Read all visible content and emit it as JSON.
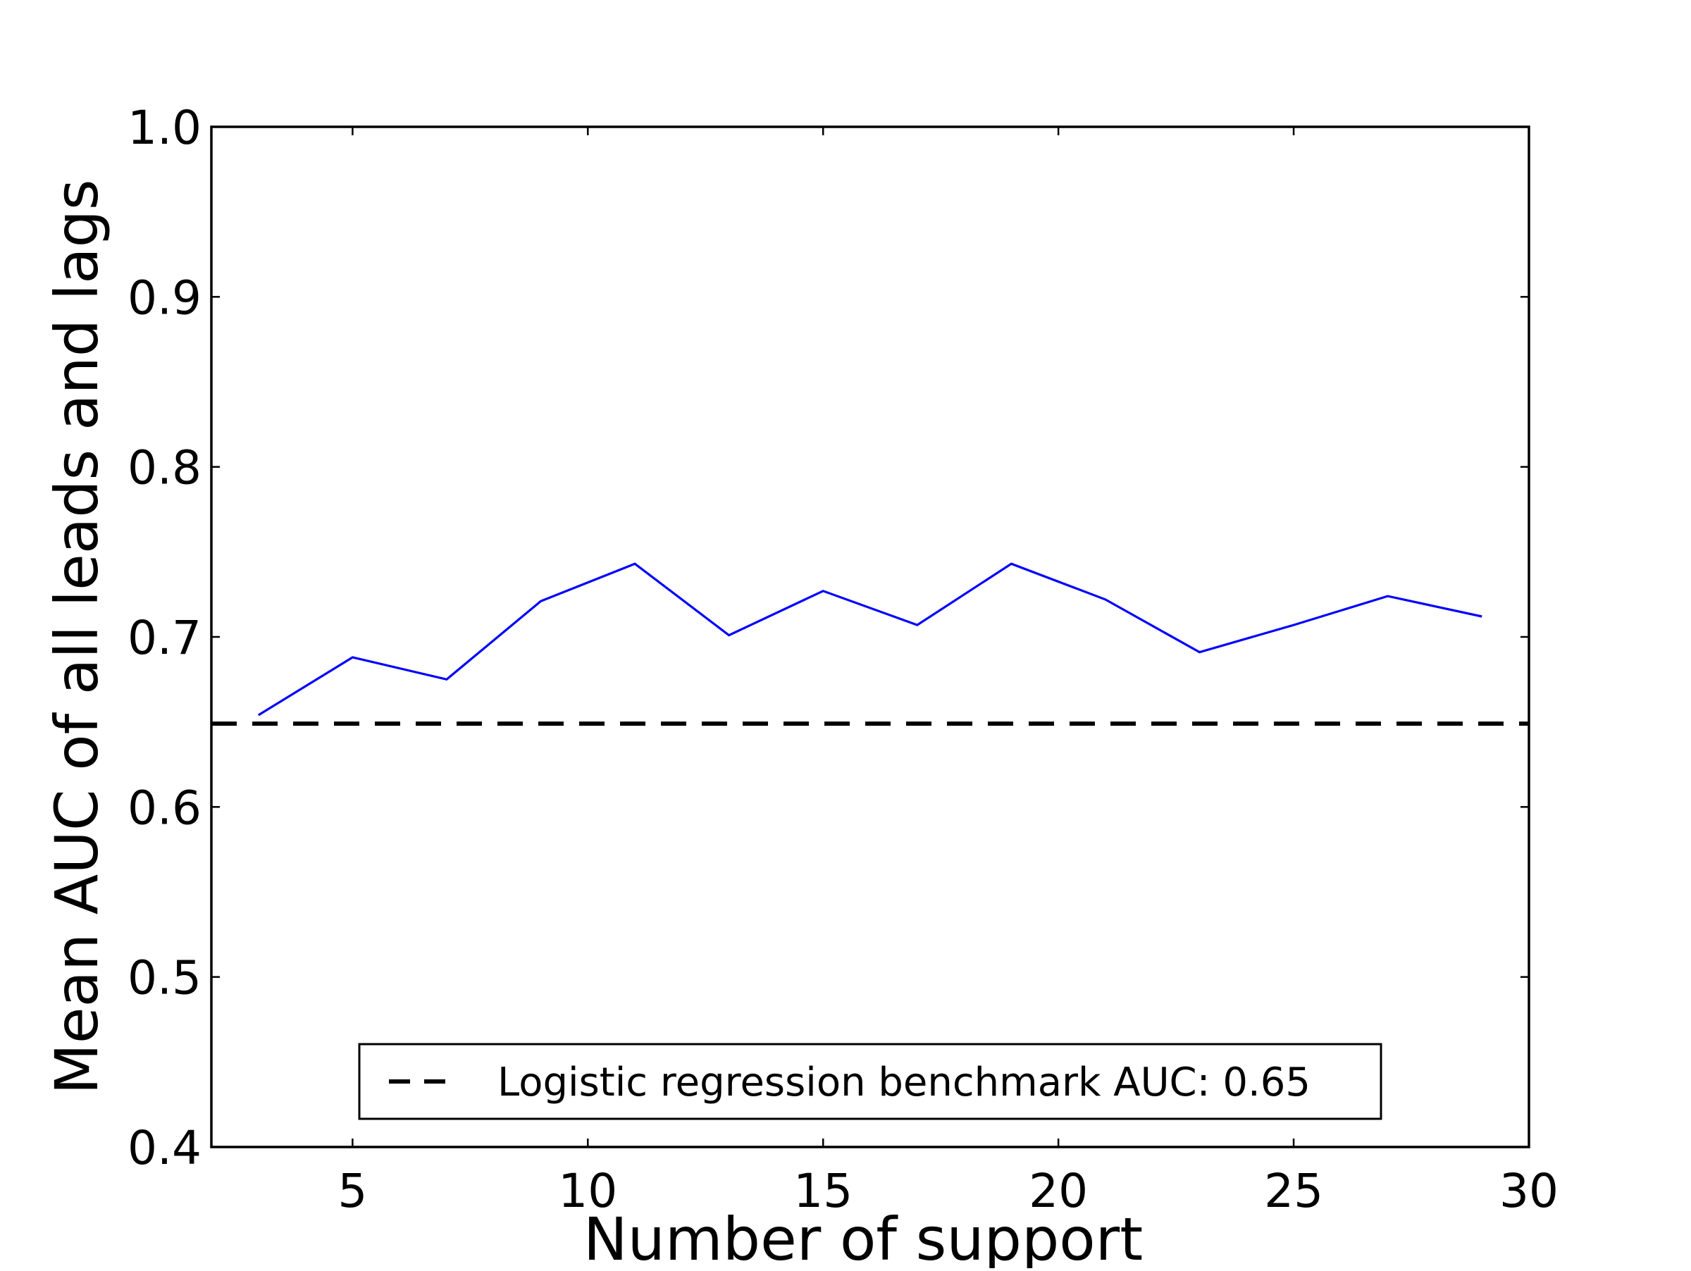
{
  "chart_data": {
    "type": "line",
    "title": "",
    "xlabel": "Number of support",
    "ylabel": "Mean AUC of all leads and lags",
    "xlim": [
      2,
      30
    ],
    "ylim": [
      0.4,
      1.0
    ],
    "xticks": [
      5,
      10,
      15,
      20,
      25,
      30
    ],
    "xtick_labels": [
      "5",
      "10",
      "15",
      "20",
      "25",
      "30"
    ],
    "yticks": [
      0.4,
      0.5,
      0.6,
      0.7,
      0.8,
      0.9,
      1.0
    ],
    "ytick_labels": [
      "0.4",
      "0.5",
      "0.6",
      "0.7",
      "0.8",
      "0.9",
      "1.0"
    ],
    "grid": false,
    "series": [
      {
        "color": "#0000ff",
        "style": "solid",
        "x": [
          3,
          5,
          7,
          9,
          11,
          13,
          15,
          17,
          19,
          21,
          23,
          25,
          27,
          29
        ],
        "y": [
          0.654,
          0.688,
          0.675,
          0.721,
          0.743,
          0.701,
          0.727,
          0.707,
          0.743,
          0.722,
          0.691,
          0.707,
          0.724,
          0.712
        ]
      }
    ],
    "reference_lines": [
      {
        "name": "Logistic regression benchmark AUC: 0.65",
        "y": 0.649,
        "color": "#000000",
        "style": "dashed"
      }
    ],
    "legend": {
      "placement": "lower center",
      "entries": [
        "Logistic regression benchmark AUC: 0.65"
      ]
    }
  }
}
